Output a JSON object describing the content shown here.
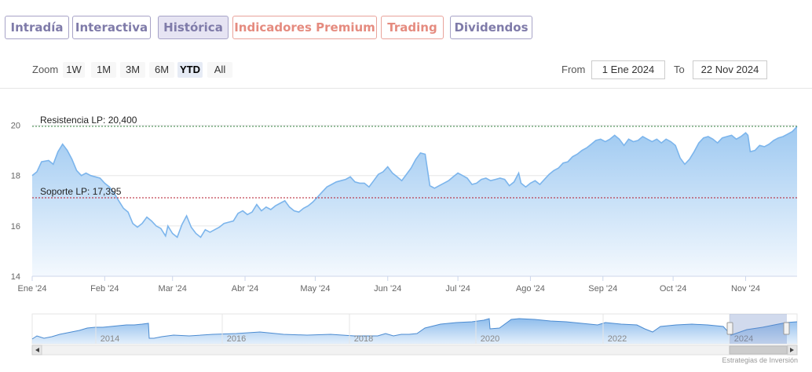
{
  "tabs": [
    {
      "label": "Intradía",
      "style": "purple"
    },
    {
      "label": "Interactiva",
      "style": "purple"
    },
    {
      "label": "Histórica",
      "style": "active"
    },
    {
      "label": "Indicadores Premium",
      "style": "warm"
    },
    {
      "label": "Trading",
      "style": "warm"
    },
    {
      "label": "Dividendos",
      "style": "purple"
    }
  ],
  "zoom": {
    "label": "Zoom",
    "buttons": [
      "1W",
      "1M",
      "3M",
      "6M",
      "YTD",
      "All"
    ],
    "active": "YTD"
  },
  "range": {
    "from_label": "From",
    "from_value": "1 Ene 2024",
    "to_label": "To",
    "to_value": "22 Nov 2024"
  },
  "credit": "Estrategias de Inversión",
  "colors": {
    "line": "#7cb5ec",
    "fill_top": "#9ec9f1",
    "fill_bottom": "#f4f9fe",
    "resistance": "#2f7d3a",
    "support": "#b3172a"
  },
  "chart_data": {
    "type": "area",
    "x_unit": "days since 1 Jan 2024",
    "xlim": [
      0,
      327
    ],
    "ylim": [
      14,
      20.3
    ],
    "yticks": [
      14,
      16,
      18,
      20
    ],
    "xticks": [
      {
        "label": "Ene '24",
        "x": 0
      },
      {
        "label": "Feb '24",
        "x": 31
      },
      {
        "label": "Mar '24",
        "x": 60
      },
      {
        "label": "Abr '24",
        "x": 91
      },
      {
        "label": "May '24",
        "x": 121
      },
      {
        "label": "Jun '24",
        "x": 152
      },
      {
        "label": "Jul '24",
        "x": 182
      },
      {
        "label": "Ago '24",
        "x": 213
      },
      {
        "label": "Sep '24",
        "x": 244
      },
      {
        "label": "Oct '24",
        "x": 274
      },
      {
        "label": "Nov '24",
        "x": 305
      }
    ],
    "hlines": [
      {
        "label": "Resistencia LP: 20,400",
        "value": 20.4,
        "color": "resistance"
      },
      {
        "label": "Soporte LP: 17,395",
        "value": 17.395,
        "color": "support"
      }
    ],
    "points": [
      [
        0,
        18.0
      ],
      [
        2,
        18.15
      ],
      [
        4,
        18.55
      ],
      [
        7,
        18.6
      ],
      [
        9,
        18.45
      ],
      [
        11,
        18.95
      ],
      [
        13,
        19.25
      ],
      [
        15,
        19.0
      ],
      [
        17,
        18.65
      ],
      [
        19,
        18.2
      ],
      [
        21,
        18.0
      ],
      [
        23,
        18.1
      ],
      [
        25,
        18.0
      ],
      [
        27,
        17.95
      ],
      [
        29,
        17.9
      ],
      [
        31,
        17.7
      ],
      [
        33,
        17.55
      ],
      [
        35,
        17.3
      ],
      [
        37,
        17.0
      ],
      [
        39,
        16.7
      ],
      [
        41,
        16.55
      ],
      [
        43,
        16.1
      ],
      [
        45,
        15.95
      ],
      [
        47,
        16.1
      ],
      [
        49,
        16.35
      ],
      [
        51,
        16.2
      ],
      [
        53,
        16.0
      ],
      [
        55,
        15.9
      ],
      [
        57,
        15.6
      ],
      [
        58,
        16.0
      ],
      [
        60,
        15.7
      ],
      [
        62,
        15.55
      ],
      [
        64,
        16.05
      ],
      [
        66,
        16.4
      ],
      [
        68,
        15.95
      ],
      [
        70,
        15.7
      ],
      [
        72,
        15.55
      ],
      [
        74,
        15.85
      ],
      [
        76,
        15.75
      ],
      [
        78,
        15.85
      ],
      [
        80,
        15.95
      ],
      [
        82,
        16.1
      ],
      [
        84,
        16.15
      ],
      [
        86,
        16.2
      ],
      [
        88,
        16.5
      ],
      [
        90,
        16.6
      ],
      [
        92,
        16.45
      ],
      [
        94,
        16.55
      ],
      [
        96,
        16.85
      ],
      [
        98,
        16.6
      ],
      [
        100,
        16.75
      ],
      [
        102,
        16.65
      ],
      [
        104,
        16.8
      ],
      [
        106,
        16.9
      ],
      [
        108,
        17.0
      ],
      [
        110,
        16.75
      ],
      [
        112,
        16.6
      ],
      [
        114,
        16.55
      ],
      [
        116,
        16.7
      ],
      [
        118,
        16.8
      ],
      [
        120,
        16.95
      ],
      [
        122,
        17.15
      ],
      [
        124,
        17.35
      ],
      [
        126,
        17.55
      ],
      [
        128,
        17.65
      ],
      [
        130,
        17.75
      ],
      [
        132,
        17.8
      ],
      [
        134,
        17.85
      ],
      [
        136,
        17.95
      ],
      [
        138,
        17.75
      ],
      [
        140,
        17.7
      ],
      [
        142,
        17.7
      ],
      [
        144,
        17.55
      ],
      [
        146,
        17.8
      ],
      [
        148,
        18.05
      ],
      [
        150,
        18.15
      ],
      [
        152,
        18.35
      ],
      [
        154,
        18.1
      ],
      [
        156,
        17.95
      ],
      [
        158,
        17.8
      ],
      [
        160,
        18.05
      ],
      [
        162,
        18.3
      ],
      [
        164,
        18.65
      ],
      [
        166,
        18.9
      ],
      [
        168,
        18.85
      ],
      [
        170,
        17.6
      ],
      [
        172,
        17.5
      ],
      [
        174,
        17.6
      ],
      [
        176,
        17.7
      ],
      [
        178,
        17.8
      ],
      [
        180,
        17.95
      ],
      [
        182,
        18.1
      ],
      [
        184,
        18.0
      ],
      [
        186,
        17.9
      ],
      [
        188,
        17.65
      ],
      [
        190,
        17.7
      ],
      [
        192,
        17.85
      ],
      [
        194,
        17.9
      ],
      [
        196,
        17.8
      ],
      [
        198,
        17.85
      ],
      [
        200,
        17.9
      ],
      [
        202,
        17.85
      ],
      [
        204,
        17.6
      ],
      [
        206,
        17.75
      ],
      [
        208,
        18.1
      ],
      [
        209,
        17.7
      ],
      [
        211,
        17.55
      ],
      [
        213,
        17.7
      ],
      [
        215,
        17.8
      ],
      [
        217,
        17.65
      ],
      [
        219,
        17.85
      ],
      [
        221,
        18.05
      ],
      [
        223,
        18.2
      ],
      [
        225,
        18.3
      ],
      [
        227,
        18.5
      ],
      [
        229,
        18.55
      ],
      [
        231,
        18.75
      ],
      [
        233,
        18.85
      ],
      [
        235,
        19.0
      ],
      [
        237,
        19.1
      ],
      [
        239,
        19.25
      ],
      [
        241,
        19.4
      ],
      [
        243,
        19.45
      ],
      [
        245,
        19.35
      ],
      [
        247,
        19.45
      ],
      [
        249,
        19.6
      ],
      [
        251,
        19.45
      ],
      [
        253,
        19.2
      ],
      [
        255,
        19.45
      ],
      [
        257,
        19.35
      ],
      [
        259,
        19.4
      ],
      [
        261,
        19.55
      ],
      [
        263,
        19.45
      ],
      [
        265,
        19.35
      ],
      [
        267,
        19.45
      ],
      [
        269,
        19.3
      ],
      [
        271,
        19.45
      ],
      [
        273,
        19.35
      ],
      [
        275,
        19.2
      ],
      [
        277,
        18.7
      ],
      [
        279,
        18.45
      ],
      [
        281,
        18.65
      ],
      [
        283,
        18.95
      ],
      [
        285,
        19.3
      ],
      [
        287,
        19.5
      ],
      [
        289,
        19.55
      ],
      [
        291,
        19.45
      ],
      [
        293,
        19.3
      ],
      [
        295,
        19.5
      ],
      [
        297,
        19.55
      ],
      [
        299,
        19.6
      ],
      [
        301,
        19.45
      ],
      [
        303,
        19.55
      ],
      [
        305,
        19.7
      ],
      [
        306,
        19.6
      ],
      [
        307,
        18.95
      ],
      [
        309,
        19.0
      ],
      [
        311,
        19.2
      ],
      [
        313,
        19.15
      ],
      [
        315,
        19.25
      ],
      [
        317,
        19.4
      ],
      [
        319,
        19.5
      ],
      [
        321,
        19.55
      ],
      [
        323,
        19.65
      ],
      [
        325,
        19.75
      ],
      [
        327,
        19.95
      ]
    ],
    "navigator": {
      "labels": [
        "2014",
        "2016",
        "2018",
        "2020",
        "2022",
        "2024"
      ],
      "selected_range": "1 Ene 2024 – 22 Nov 2024"
    }
  }
}
